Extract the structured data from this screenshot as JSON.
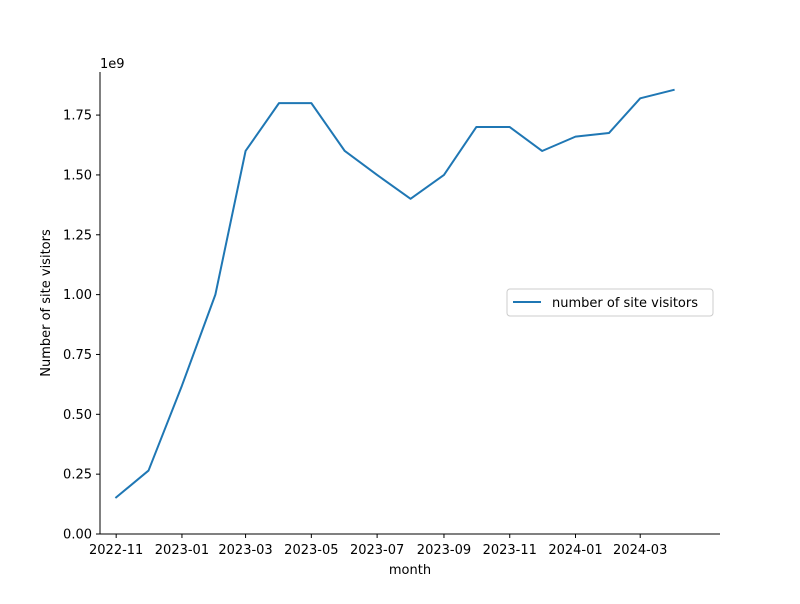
{
  "chart_data": {
    "type": "line",
    "title": "",
    "xlabel": "month",
    "ylabel": "Number of site visitors",
    "y_offset_label": "1e9",
    "ylim": [
      0,
      1.93
    ],
    "xlim": [
      "2022-10-17",
      "2024-05-14"
    ],
    "x_ticks": [
      "2022-11",
      "2023-01",
      "2023-03",
      "2023-05",
      "2023-07",
      "2023-09",
      "2023-11",
      "2024-01",
      "2024-03"
    ],
    "y_ticks": [
      "0.00",
      "0.25",
      "0.50",
      "0.75",
      "1.00",
      "1.25",
      "1.50",
      "1.75"
    ],
    "grid": false,
    "legend_position": "center-right",
    "series": [
      {
        "name": "number of site visitors",
        "color": "#1f77b4",
        "x": [
          "2022-11-01",
          "2022-12-01",
          "2023-01-01",
          "2023-02-01",
          "2023-03-01",
          "2023-04-01",
          "2023-05-01",
          "2023-06-01",
          "2023-07-01",
          "2023-08-01",
          "2023-09-01",
          "2023-10-01",
          "2023-11-01",
          "2023-12-01",
          "2024-01-01",
          "2024-02-01",
          "2024-03-01",
          "2024-04-01"
        ],
        "y": [
          0.153,
          0.265,
          0.62,
          1.0,
          1.6,
          1.8,
          1.8,
          1.6,
          1.5,
          1.4,
          1.5,
          1.7,
          1.7,
          1.6,
          1.66,
          1.675,
          1.82,
          1.855
        ]
      }
    ]
  }
}
